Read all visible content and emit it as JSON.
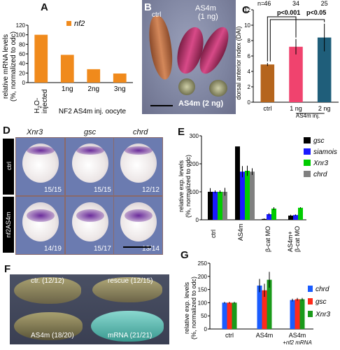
{
  "panels": {
    "A": "A",
    "B": "B",
    "C": "C",
    "D": "D",
    "E": "E",
    "F": "F",
    "G": "G"
  },
  "panelA": {
    "legend": "nf2",
    "ylabel_line1": "relative mRNA levels",
    "ylabel_line2": "(%, normalized to odc)",
    "h2o_label_line1": "H",
    "h2o_label_line2": "2",
    "h2o_label_line3": "O-",
    "h2o_label_line4": "injected",
    "xlabel": "NF2 AS4m inj. oocyte",
    "color": "#f08a1c"
  },
  "panelB": {
    "ctrl": "ctrl",
    "as4m_1": "AS4m",
    "as4m_1_dose": "(1 ng)",
    "as4m_2": "AS4m (2 ng)"
  },
  "panelC": {
    "n_label": "n=",
    "ylabel": "dorsal anterior index (DAI)",
    "sig1": "p<0.001",
    "sig2": "p<0.05",
    "xgroup": "AS4m inj."
  },
  "panelD": {
    "cols": [
      "Xnr3",
      "gsc",
      "chrd"
    ],
    "rows": [
      "ctrl",
      "nf2AS4m"
    ],
    "counts": [
      [
        "15/15",
        "15/15",
        "12/12"
      ],
      [
        "14/19",
        "15/17",
        "13/14"
      ]
    ]
  },
  "panelE": {
    "ylabel_line1": "relative exp. levels",
    "ylabel_line2": "(%, normalized to odc)",
    "xlabel_ctrl": "ctrl",
    "xlabel_as4m": "AS4m",
    "xlabel_bcat": "β-cat MO",
    "xlabel_combo_line1": "AS4m+",
    "xlabel_combo_line2": "β-cat MO",
    "legend": [
      "gsc",
      "siamois",
      "Xnr3",
      "chrd"
    ]
  },
  "panelF": {
    "ctrl": "ctr. (12/12)",
    "rescue": "rescue (12/15)",
    "as4m": "AS4m (18/20)",
    "mrna": "mRNA (21/21)"
  },
  "panelG": {
    "ylabel_line1": "relative exp. levels",
    "ylabel_line2": "(%, normalized to odc)",
    "xlabel_ctrl": "ctrl",
    "xlabel_as4m": "AS4m",
    "xlabel_rescue_line1": "AS4m",
    "xlabel_rescue_line2": "+nf2 mRNA",
    "legend": [
      "chrd",
      "gsc",
      "Xnr3"
    ]
  },
  "chart_data": [
    {
      "panel": "A",
      "type": "bar",
      "categories": [
        "H2O-injected",
        "1ng",
        "2ng",
        "3ng"
      ],
      "values": [
        100,
        58,
        28,
        19
      ],
      "ylim": [
        0,
        120
      ],
      "yticks": [
        0,
        20,
        40,
        60,
        80,
        100,
        120
      ],
      "series_name": "nf2"
    },
    {
      "panel": "C",
      "type": "bar",
      "categories": [
        "ctrl",
        "1 ng",
        "2 ng"
      ],
      "values": [
        4.9,
        7.2,
        8.4
      ],
      "errors": [
        0.2,
        1.0,
        1.8
      ],
      "n": [
        "46",
        "34",
        "25"
      ],
      "colors": [
        "#b5651d",
        "#f0436e",
        "#1f5e7a"
      ],
      "ylim": [
        0,
        12
      ],
      "yticks": [
        0,
        2,
        4,
        6,
        8,
        10,
        12
      ]
    },
    {
      "panel": "E",
      "type": "bar",
      "categories": [
        "ctrl",
        "AS4m",
        "β-cat MO",
        "AS4m+ β-cat MO"
      ],
      "series": [
        {
          "name": "gsc",
          "color": "#000000",
          "values": [
            100,
            262,
            3,
            15
          ],
          "errors": [
            13,
            0,
            2,
            3
          ]
        },
        {
          "name": "siamois",
          "color": "#1a1aff",
          "values": [
            100,
            172,
            20,
            17
          ],
          "errors": [
            5,
            20,
            4,
            2
          ]
        },
        {
          "name": "Xnr3",
          "color": "#00cc00",
          "values": [
            100,
            175,
            40,
            43
          ],
          "errors": [
            5,
            18,
            5,
            2
          ]
        },
        {
          "name": "chrd",
          "color": "#808080",
          "values": [
            100,
            172,
            0,
            0
          ],
          "errors": [
            14,
            12,
            0,
            0
          ]
        }
      ],
      "ylim": [
        0,
        300
      ],
      "yticks": [
        0,
        100,
        200,
        300
      ]
    },
    {
      "panel": "G",
      "type": "bar",
      "categories": [
        "ctrl",
        "AS4m",
        "AS4m +nf2 mRNA"
      ],
      "series": [
        {
          "name": "chrd",
          "color": "#1a5cff",
          "values": [
            100,
            165,
            110
          ],
          "errors": [
            3,
            25,
            5
          ]
        },
        {
          "name": "gsc",
          "color": "#ff2a1a",
          "values": [
            100,
            147,
            113
          ],
          "errors": [
            3,
            25,
            5
          ]
        },
        {
          "name": "Xnr3",
          "color": "#1a9a1a",
          "values": [
            100,
            187,
            113
          ],
          "errors": [
            3,
            30,
            5
          ]
        }
      ],
      "ylim": [
        0,
        250
      ],
      "yticks": [
        0,
        50,
        100,
        150,
        200,
        250
      ]
    }
  ]
}
